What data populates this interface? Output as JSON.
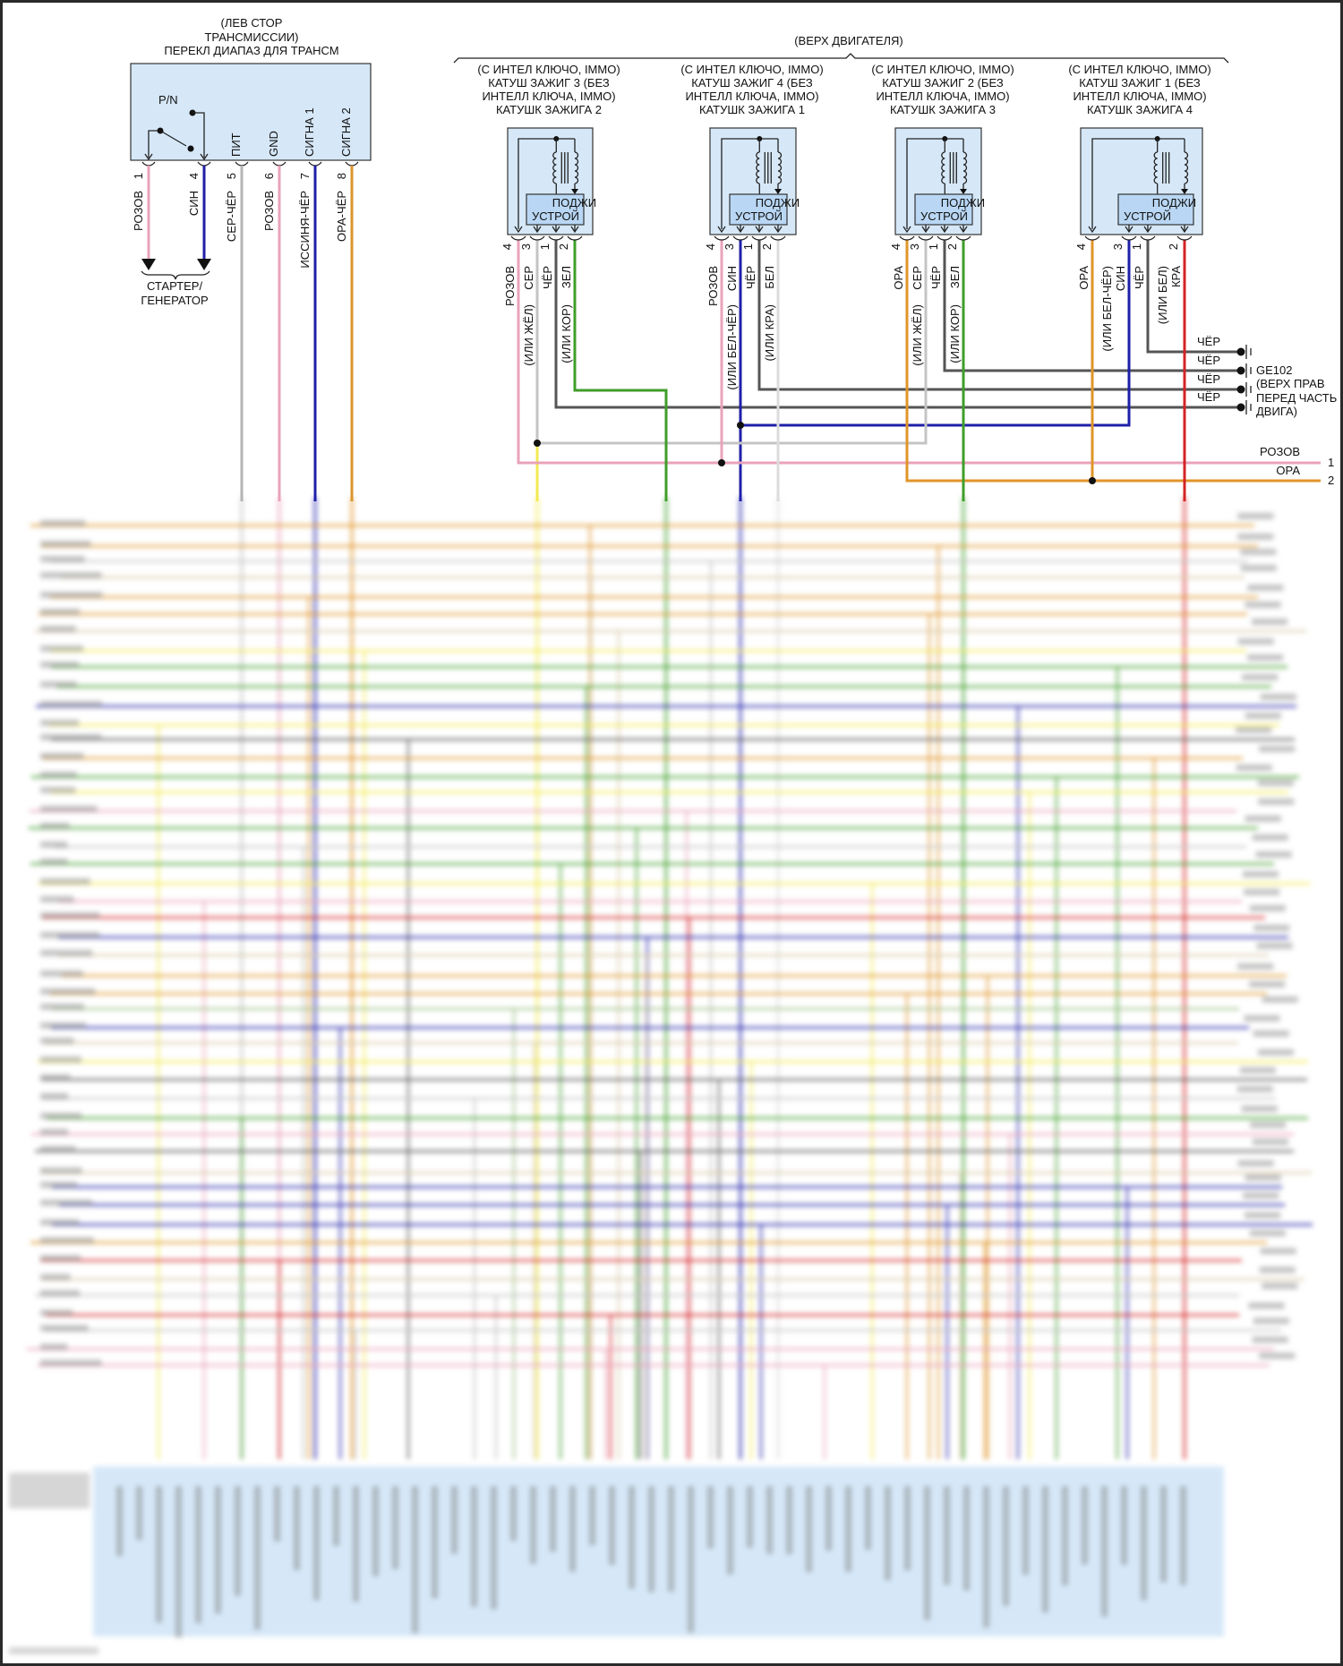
{
  "range_switch": {
    "title_lines": [
      "(ЛЕВ СТОР",
      "ТРАНСМИССИИ)",
      "ПЕРЕКЛ ДИАПАЗ ДЛЯ ТРАНСМ"
    ],
    "switch_label": "P/N",
    "internal_labels": [
      "ПИТ",
      "GND",
      "СИГНА 1",
      "СИГНА 2"
    ],
    "pins": [
      {
        "num": "1",
        "wire": "РОЗОВ",
        "color": "#e9a3b9"
      },
      {
        "num": "4",
        "wire": "СИН",
        "color": "#1f1fa8"
      },
      {
        "num": "5",
        "wire": "СЕР-ЧЁР",
        "color": "#b4b4b4"
      },
      {
        "num": "6",
        "wire": "РОЗОВ",
        "color": "#e9a3b9"
      },
      {
        "num": "7",
        "wire": "ИССИНЯ-ЧЁР",
        "color": "#1f1fa8"
      },
      {
        "num": "8",
        "wire": "ОРА-ЧЁР",
        "color": "#d9962e"
      }
    ],
    "destination_lines": [
      "СТАРТЕР/",
      "ГЕНЕРАТОР"
    ]
  },
  "engine_top_label": "(ВЕРХ ДВИГАТЕЛЯ)",
  "ic_labels": {
    "line1": "ПОДЖИ",
    "line2": "УСТРОЙ"
  },
  "coils": [
    {
      "title_lines": [
        "(С ИНТЕЛ КЛЮЧО, IMMO)",
        "КАТУШ ЗАЖИГ 3 (БЕЗ",
        "ИНТЕЛЛ КЛЮЧА, IMMO)",
        "КАТУШК ЗАЖИГА 2"
      ],
      "pins": [
        {
          "num": "4",
          "wire": "РОЗОВ",
          "alt": "",
          "color": "#e9a3b9"
        },
        {
          "num": "3",
          "wire": "СЕР",
          "alt": "(ИЛИ ЖЁЛ)",
          "color": "#c4c4c4"
        },
        {
          "num": "1",
          "wire": "ЧЁР",
          "alt": "",
          "color": "#555555"
        },
        {
          "num": "2",
          "wire": "ЗЕЛ",
          "alt": "(ИЛИ КОР)",
          "color": "#3f9e2a"
        }
      ]
    },
    {
      "title_lines": [
        "(С ИНТЕЛ КЛЮЧО, IMMO)",
        "КАТУШ ЗАЖИГ 4 (БЕЗ",
        "ИНТЕЛЛ КЛЮЧА, IMMO)",
        "КАТУШК ЗАЖИГА 1"
      ],
      "pins": [
        {
          "num": "4",
          "wire": "РОЗОВ",
          "alt": "",
          "color": "#e9a3b9"
        },
        {
          "num": "3",
          "wire": "СИН",
          "alt": "(ИЛИ БЕЛ-ЧЁР)",
          "color": "#1f1fa8"
        },
        {
          "num": "1",
          "wire": "ЧЁР",
          "alt": "",
          "color": "#555555"
        },
        {
          "num": "2",
          "wire": "БЕЛ",
          "alt": "(ИЛИ КРА)",
          "color": "#dcdcdc"
        }
      ]
    },
    {
      "title_lines": [
        "(С ИНТЕЛ КЛЮЧО, IMMO)",
        "КАТУШ ЗАЖИГ 2 (БЕЗ",
        "ИНТЕЛЛ КЛЮЧА, IMMO)",
        "КАТУШК ЗАЖИГА 3"
      ],
      "pins": [
        {
          "num": "4",
          "wire": "ОРА",
          "alt": "",
          "color": "#e0952a"
        },
        {
          "num": "3",
          "wire": "СЕР",
          "alt": "(ИЛИ ЖЁЛ)",
          "color": "#c4c4c4"
        },
        {
          "num": "1",
          "wire": "ЧЁР",
          "alt": "",
          "color": "#555555"
        },
        {
          "num": "2",
          "wire": "ЗЕЛ",
          "alt": "(ИЛИ КОР)",
          "color": "#3f9e2a"
        }
      ]
    },
    {
      "title_lines": [
        "(С ИНТЕЛ КЛЮЧО, IMMO)",
        "КАТУШ ЗАЖИГ 1 (БЕЗ",
        "ИНТЕЛЛ КЛЮЧА, IMMO)",
        "КАТУШК ЗАЖИГА 4"
      ],
      "pins": [
        {
          "num": "4",
          "wire": "ОРА",
          "alt": "",
          "color": "#e0952a"
        },
        {
          "num": "3",
          "wire": "СИН",
          "alt": "(ИЛИ БЕЛ-ЧЁР)",
          "color": "#1f1fa8"
        },
        {
          "num": "1",
          "wire": "ЧЁР",
          "alt": "",
          "color": "#555555"
        },
        {
          "num": "2",
          "wire": "КРА",
          "alt": "(ИЛИ БЕЛ)",
          "color": "#d42424"
        }
      ]
    }
  ],
  "ground": {
    "wire_labels": [
      "ЧЁР",
      "ЧЁР",
      "ЧЁР",
      "ЧЁР"
    ],
    "name": "GE102",
    "location_lines": [
      "(ВЕРХ ПРАВ",
      "ПЕРЕД ЧАСТЬ",
      "ДВИГА)"
    ]
  },
  "buses": [
    {
      "wire": "РОЗОВ",
      "num": "1",
      "color": "#e9a3b9"
    },
    {
      "wire": "ОРА",
      "num": "2",
      "color": "#e0952a"
    }
  ]
}
